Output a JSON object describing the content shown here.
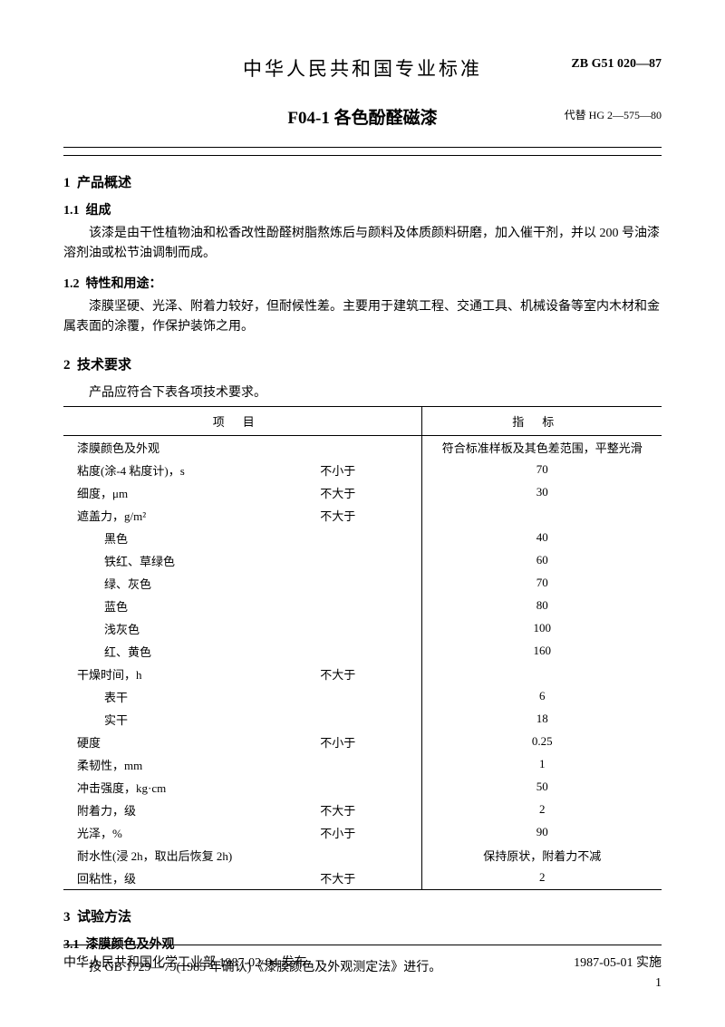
{
  "header": {
    "title": "中华人民共和国专业标准",
    "code": "ZB G51 020—87",
    "subtitle": "F04-1 各色酚醛磁漆",
    "replace": "代替 HG 2—575—80"
  },
  "section1": {
    "num": "1",
    "title": "产品概述",
    "sub1_num": "1.1",
    "sub1_title": "组成",
    "sub1_text": "该漆是由干性植物油和松香改性酚醛树脂熬炼后与颜料及体质颜料研磨，加入催干剂，并以 200 号油漆溶剂油或松节油调制而成。",
    "sub2_num": "1.2",
    "sub2_title": "特性和用途：",
    "sub2_text": "漆膜坚硬、光泽、附着力较好，但耐候性差。主要用于建筑工程、交通工具、机械设备等室内木材和金属表面的涂覆，作保护装饰之用。"
  },
  "section2": {
    "num": "2",
    "title": "技术要求",
    "intro": "产品应符合下表各项技术要求。",
    "th1": "项目",
    "th2": "指标"
  },
  "table": {
    "rows": [
      {
        "item": "漆膜颜色及外观",
        "cond": "",
        "val": "符合标准样板及其色差范围，平整光滑",
        "indent": false
      },
      {
        "item": "粘度(涂-4 粘度计)，s",
        "cond": "不小于",
        "val": "70",
        "indent": false
      },
      {
        "item": "细度，μm",
        "cond": "不大于",
        "val": "30",
        "indent": false
      },
      {
        "item": "遮盖力，g/m²",
        "cond": "不大于",
        "val": "",
        "indent": false
      },
      {
        "item": "黑色",
        "cond": "",
        "val": "40",
        "indent": true
      },
      {
        "item": "铁红、草绿色",
        "cond": "",
        "val": "60",
        "indent": true
      },
      {
        "item": "绿、灰色",
        "cond": "",
        "val": "70",
        "indent": true
      },
      {
        "item": "蓝色",
        "cond": "",
        "val": "80",
        "indent": true
      },
      {
        "item": "浅灰色",
        "cond": "",
        "val": "100",
        "indent": true
      },
      {
        "item": "红、黄色",
        "cond": "",
        "val": "160",
        "indent": true
      },
      {
        "item": "干燥时间，h",
        "cond": "不大于",
        "val": "",
        "indent": false
      },
      {
        "item": "表干",
        "cond": "",
        "val": "6",
        "indent": true
      },
      {
        "item": "实干",
        "cond": "",
        "val": "18",
        "indent": true
      },
      {
        "item": "硬度",
        "cond": "不小于",
        "val": "0.25",
        "indent": false
      },
      {
        "item": "柔韧性，mm",
        "cond": "",
        "val": "1",
        "indent": false
      },
      {
        "item": "冲击强度，kg·cm",
        "cond": "",
        "val": "50",
        "indent": false
      },
      {
        "item": "附着力，级",
        "cond": "不大于",
        "val": "2",
        "indent": false
      },
      {
        "item": "光泽，%",
        "cond": "不小于",
        "val": "90",
        "indent": false
      },
      {
        "item": "耐水性(浸 2h，取出后恢复 2h)",
        "cond": "",
        "val": "保持原状，附着力不减",
        "indent": false
      },
      {
        "item": "回粘性，级",
        "cond": "不大于",
        "val": "2",
        "indent": false
      }
    ]
  },
  "section3": {
    "num": "3",
    "title": "试验方法",
    "sub1_num": "3.1",
    "sub1_title": "漆膜颜色及外观",
    "sub1_text": "按 GB 1729—79(1985 年确认)《漆膜颜色及外观测定法》进行。"
  },
  "footer": {
    "left": "中华人民共和国化学工业部 1987-02-04 发布",
    "right": "1987-05-01 实施",
    "page": "1"
  }
}
